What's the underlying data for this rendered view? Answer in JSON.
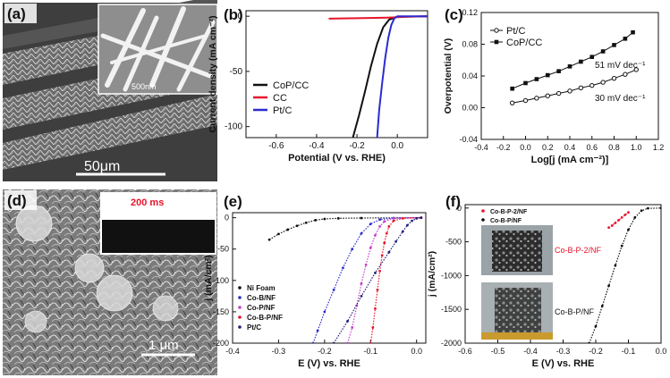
{
  "panels": {
    "a": {
      "label": "(a)",
      "scale_bar": "50μm",
      "inset_scale": "500nm"
    },
    "d": {
      "label": "(d)",
      "scale_bar": "1 μm",
      "inset_label": "200 ms"
    },
    "b": {
      "label": "(b)"
    },
    "c": {
      "label": "(c)"
    },
    "e": {
      "label": "(e)"
    },
    "f": {
      "label": "(f)",
      "photo_top_label": "Co-B-P-2/NF",
      "photo_bottom_label": "Co-B-P/NF"
    }
  },
  "colors": {
    "black": "#111111",
    "red": "#e8142a",
    "blue": "#2b2bd0",
    "purple": "#c43fc8",
    "navy": "#1f1f7a"
  },
  "chart_data": [
    {
      "id": "b",
      "type": "line",
      "title": "",
      "xlabel": "Potential (V vs. RHE)",
      "ylabel": "Current density (mA cm⁻²)",
      "xlim": [
        -0.75,
        0.15
      ],
      "ylim": [
        -110,
        5
      ],
      "xticks": [
        "-0.6",
        "-0.4",
        "-0.2",
        "0.0"
      ],
      "yticks": [
        "0",
        "-50",
        "-100"
      ],
      "legend": "bottom-left",
      "series": [
        {
          "name": "CoP/CC",
          "color": "#111111",
          "points": [
            [
              -0.22,
              -110
            ],
            [
              -0.19,
              -90
            ],
            [
              -0.16,
              -68
            ],
            [
              -0.13,
              -45
            ],
            [
              -0.1,
              -25
            ],
            [
              -0.07,
              -10
            ],
            [
              -0.04,
              -3
            ],
            [
              0.0,
              -0.5
            ],
            [
              0.15,
              0
            ]
          ]
        },
        {
          "name": "CC",
          "color": "#e8142a",
          "points": [
            [
              -0.34,
              -2.2
            ],
            [
              -0.2,
              -1.8
            ],
            [
              -0.05,
              -1.2
            ],
            [
              0.05,
              -0.5
            ],
            [
              0.15,
              0
            ]
          ]
        },
        {
          "name": "Pt/C",
          "color": "#2b2bd0",
          "points": [
            [
              -0.1,
              -110
            ],
            [
              -0.09,
              -85
            ],
            [
              -0.075,
              -60
            ],
            [
              -0.06,
              -38
            ],
            [
              -0.045,
              -20
            ],
            [
              -0.03,
              -8
            ],
            [
              -0.015,
              -2
            ],
            [
              0.0,
              0
            ],
            [
              0.15,
              0
            ]
          ]
        }
      ]
    },
    {
      "id": "c",
      "type": "line",
      "title": "",
      "xlabel": "Log[j (mA cm⁻²)]",
      "ylabel": "Overpotential (V)",
      "xlim": [
        -0.4,
        1.2
      ],
      "ylim": [
        -0.04,
        0.12
      ],
      "xticks": [
        "-0.4",
        "-0.2",
        "0.0",
        "0.2",
        "0.4",
        "0.6",
        "0.8",
        "1.0",
        "1.2"
      ],
      "yticks": [
        "0.12",
        "0.08",
        "0.04",
        "0.00",
        "-0.04"
      ],
      "legend": "top-left",
      "annotations": [
        "51 mV dec⁻¹",
        "30 mV dec⁻¹"
      ],
      "series": [
        {
          "name": "Pt/C",
          "color": "#111111",
          "marker": "circle",
          "points": [
            [
              -0.12,
              0.006
            ],
            [
              0.0,
              0.009
            ],
            [
              0.1,
              0.012
            ],
            [
              0.2,
              0.015
            ],
            [
              0.3,
              0.018
            ],
            [
              0.4,
              0.021
            ],
            [
              0.5,
              0.025
            ],
            [
              0.6,
              0.028
            ],
            [
              0.7,
              0.032
            ],
            [
              0.8,
              0.037
            ],
            [
              0.9,
              0.042
            ],
            [
              1.0,
              0.048
            ]
          ]
        },
        {
          "name": "CoP/CC",
          "color": "#111111",
          "marker": "square",
          "points": [
            [
              -0.12,
              0.024
            ],
            [
              0.0,
              0.031
            ],
            [
              0.1,
              0.036
            ],
            [
              0.2,
              0.041
            ],
            [
              0.3,
              0.046
            ],
            [
              0.4,
              0.052
            ],
            [
              0.5,
              0.058
            ],
            [
              0.6,
              0.064
            ],
            [
              0.7,
              0.071
            ],
            [
              0.8,
              0.079
            ],
            [
              0.9,
              0.087
            ],
            [
              0.97,
              0.095
            ]
          ]
        }
      ]
    },
    {
      "id": "e",
      "type": "line",
      "title": "",
      "xlabel": "E (V) vs. RHE",
      "ylabel": "j (mA/cm²)",
      "xlim": [
        -0.4,
        0.02
      ],
      "ylim": [
        -200,
        8
      ],
      "xticks": [
        "-0.4",
        "-0.3",
        "-0.2",
        "-0.1",
        "0.0"
      ],
      "yticks": [
        "0",
        "-50",
        "-100",
        "-150",
        "-200"
      ],
      "legend": "bottom-left",
      "series": [
        {
          "name": "Ni Foam",
          "color": "#111111",
          "points": [
            [
              -0.32,
              -35
            ],
            [
              -0.3,
              -26
            ],
            [
              -0.28,
              -19
            ],
            [
              -0.26,
              -13
            ],
            [
              -0.24,
              -8
            ],
            [
              -0.22,
              -4
            ],
            [
              -0.2,
              -2
            ],
            [
              -0.17,
              -1
            ],
            [
              -0.12,
              -0.5
            ],
            [
              0.01,
              0
            ]
          ]
        },
        {
          "name": "Co-B/NF",
          "color": "#2b2bd0",
          "points": [
            [
              -0.225,
              -200
            ],
            [
              -0.215,
              -180
            ],
            [
              -0.2,
              -150
            ],
            [
              -0.18,
              -115
            ],
            [
              -0.16,
              -80
            ],
            [
              -0.14,
              -50
            ],
            [
              -0.12,
              -25
            ],
            [
              -0.1,
              -10
            ],
            [
              -0.08,
              -3
            ],
            [
              -0.05,
              -0.5
            ],
            [
              0.01,
              0
            ]
          ]
        },
        {
          "name": "Co-P/NF",
          "color": "#c43fc8",
          "points": [
            [
              -0.15,
              -200
            ],
            [
              -0.14,
              -175
            ],
            [
              -0.13,
              -140
            ],
            [
              -0.12,
              -105
            ],
            [
              -0.11,
              -75
            ],
            [
              -0.1,
              -48
            ],
            [
              -0.09,
              -28
            ],
            [
              -0.08,
              -14
            ],
            [
              -0.07,
              -6
            ],
            [
              -0.05,
              -1
            ],
            [
              0.01,
              0
            ]
          ]
        },
        {
          "name": "Co-B-P/NF",
          "color": "#e8142a",
          "points": [
            [
              -0.1,
              -200
            ],
            [
              -0.095,
              -175
            ],
            [
              -0.09,
              -145
            ],
            [
              -0.085,
              -115
            ],
            [
              -0.08,
              -85
            ],
            [
              -0.075,
              -60
            ],
            [
              -0.07,
              -40
            ],
            [
              -0.065,
              -25
            ],
            [
              -0.06,
              -14
            ],
            [
              -0.05,
              -5
            ],
            [
              -0.03,
              -1
            ],
            [
              0.01,
              0
            ]
          ]
        },
        {
          "name": "Pt/C",
          "color": "#1f1f7a",
          "points": [
            [
              -0.18,
              -200
            ],
            [
              -0.15,
              -165
            ],
            [
              -0.12,
              -125
            ],
            [
              -0.09,
              -88
            ],
            [
              -0.06,
              -55
            ],
            [
              -0.045,
              -38
            ],
            [
              -0.03,
              -22
            ],
            [
              -0.02,
              -12
            ],
            [
              -0.01,
              -5
            ],
            [
              0.0,
              -1
            ],
            [
              0.01,
              0
            ]
          ]
        }
      ]
    },
    {
      "id": "f",
      "type": "line",
      "title": "",
      "xlabel": "E (V) vs. RHE",
      "ylabel": "j (mA/cm²)",
      "xlim": [
        -0.6,
        0.0
      ],
      "ylim": [
        -2000,
        50
      ],
      "xticks": [
        "-0.6",
        "-0.5",
        "-0.4",
        "-0.3",
        "-0.2",
        "-0.1",
        "0.0"
      ],
      "yticks": [
        "0",
        "-500",
        "-1000",
        "-1500",
        "-2000"
      ],
      "legend": "top-left",
      "series": [
        {
          "name": "Co-B-P-2/NF",
          "color": "#e8142a",
          "points": [
            [
              -0.16,
              -290
            ],
            [
              -0.15,
              -260
            ],
            [
              -0.14,
              -220
            ],
            [
              -0.13,
              -180
            ],
            [
              -0.12,
              -140
            ],
            [
              -0.11,
              -100
            ],
            [
              -0.1,
              -65
            ]
          ]
        },
        {
          "name": "Co-B-P/NF",
          "color": "#111111",
          "points": [
            [
              -0.22,
              -2000
            ],
            [
              -0.2,
              -1750
            ],
            [
              -0.18,
              -1450
            ],
            [
              -0.16,
              -1150
            ],
            [
              -0.14,
              -850
            ],
            [
              -0.12,
              -560
            ],
            [
              -0.1,
              -320
            ],
            [
              -0.08,
              -140
            ],
            [
              -0.06,
              -40
            ],
            [
              -0.04,
              -5
            ],
            [
              0.0,
              0
            ]
          ]
        }
      ]
    }
  ]
}
